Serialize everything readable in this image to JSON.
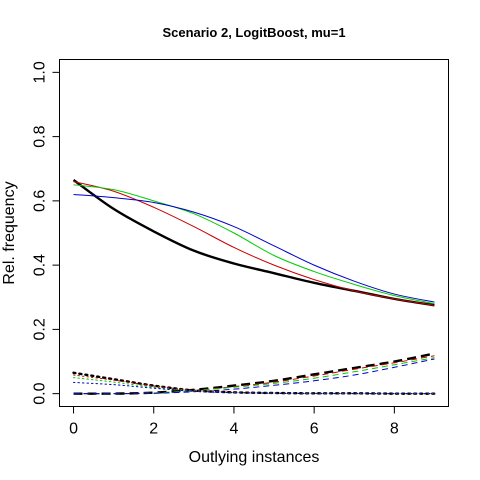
{
  "chart_data": {
    "type": "line",
    "title": "Scenario 2, LogitBoost, mu=1",
    "xlabel": "Outlying instances",
    "ylabel": "Rel. frequency",
    "xlim": [
      -0.35,
      9.35
    ],
    "ylim": [
      -0.04,
      1.04
    ],
    "xticks": [
      0,
      2,
      4,
      6,
      8
    ],
    "yticks": [
      0.0,
      0.2,
      0.4,
      0.6,
      0.8,
      1.0
    ],
    "xtick_labels": [
      "0",
      "2",
      "4",
      "6",
      "8"
    ],
    "ytick_labels": [
      "0.0",
      "0.2",
      "0.4",
      "0.6",
      "0.8",
      "1.0"
    ],
    "grid": false,
    "x": [
      0,
      1,
      2,
      3,
      4,
      5,
      6,
      7,
      8,
      9
    ],
    "series": [
      {
        "color": "#000000",
        "style": "solid",
        "width": 2.4,
        "values": [
          0.665,
          0.575,
          0.505,
          0.445,
          0.405,
          0.375,
          0.345,
          0.32,
          0.295,
          0.275
        ]
      },
      {
        "color": "#cc0000",
        "style": "solid",
        "width": 1,
        "values": [
          0.66,
          0.63,
          0.58,
          0.52,
          0.455,
          0.4,
          0.355,
          0.32,
          0.295,
          0.275
        ]
      },
      {
        "color": "#00cc00",
        "style": "solid",
        "width": 1,
        "values": [
          0.65,
          0.635,
          0.6,
          0.56,
          0.5,
          0.43,
          0.38,
          0.34,
          0.305,
          0.28
        ]
      },
      {
        "color": "#0000cc",
        "style": "solid",
        "width": 1,
        "values": [
          0.62,
          0.61,
          0.595,
          0.565,
          0.52,
          0.46,
          0.4,
          0.35,
          0.31,
          0.285
        ]
      },
      {
        "color": "#000000",
        "style": "dashed",
        "width": 2.4,
        "values": [
          0.0,
          0.0,
          0.003,
          0.012,
          0.025,
          0.04,
          0.06,
          0.08,
          0.1,
          0.125
        ]
      },
      {
        "color": "#cc0000",
        "style": "dashed",
        "width": 1,
        "values": [
          0.0,
          0.0,
          0.002,
          0.01,
          0.022,
          0.036,
          0.055,
          0.076,
          0.096,
          0.118
        ]
      },
      {
        "color": "#00cc00",
        "style": "dashed",
        "width": 1,
        "values": [
          0.0,
          0.0,
          0.002,
          0.009,
          0.02,
          0.032,
          0.048,
          0.068,
          0.09,
          0.112
        ]
      },
      {
        "color": "#0000cc",
        "style": "dashed",
        "width": 1,
        "values": [
          0.0,
          0.0,
          0.001,
          0.006,
          0.014,
          0.026,
          0.04,
          0.058,
          0.082,
          0.108
        ]
      },
      {
        "color": "#000000",
        "style": "dotted",
        "width": 2.4,
        "values": [
          0.065,
          0.045,
          0.025,
          0.01,
          0.004,
          0.002,
          0.001,
          0.001,
          0.0,
          0.0
        ]
      },
      {
        "color": "#cc0000",
        "style": "dotted",
        "width": 1,
        "values": [
          0.058,
          0.042,
          0.024,
          0.01,
          0.004,
          0.002,
          0.001,
          0.001,
          0.0,
          0.0
        ]
      },
      {
        "color": "#00cc00",
        "style": "dotted",
        "width": 1,
        "values": [
          0.05,
          0.036,
          0.02,
          0.008,
          0.003,
          0.001,
          0.001,
          0.0,
          0.0,
          0.0
        ]
      },
      {
        "color": "#0000cc",
        "style": "dotted",
        "width": 1,
        "values": [
          0.035,
          0.028,
          0.017,
          0.007,
          0.003,
          0.001,
          0.0,
          0.0,
          0.0,
          0.0
        ]
      }
    ]
  }
}
